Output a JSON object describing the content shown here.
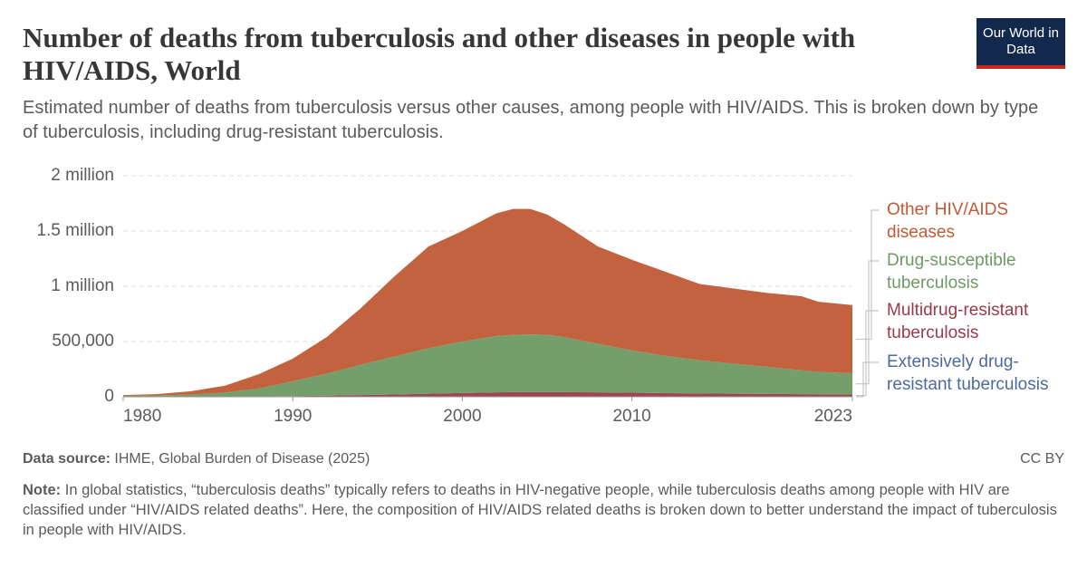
{
  "chart_data": {
    "type": "stacked-area",
    "title": "Number of deaths from tuberculosis and other diseases in people with HIV/AIDS, World",
    "subtitle": "Estimated number of deaths from tuberculosis versus other causes, among people with HIV/AIDS. This is broken down by type of tuberculosis, including drug-resistant tuberculosis.",
    "logo": "Our World in Data",
    "source_label": "Data source:",
    "source": "IHME, Global Burden of Disease (2025)",
    "license": "CC BY",
    "note_label": "Note:",
    "note": "In global statistics, “tuberculosis deaths” typically refers to deaths in HIV-negative people, while tuberculosis deaths among people with HIV are classified under “HIV/AIDS related deaths”. Here, the composition of HIV/AIDS related deaths is broken down to better understand the impact of tuberculosis in people with HIV/AIDS.",
    "x": [
      1980,
      1982,
      1984,
      1986,
      1988,
      1990,
      1992,
      1994,
      1996,
      1998,
      2000,
      2002,
      2003,
      2004,
      2005,
      2006,
      2008,
      2010,
      2012,
      2014,
      2016,
      2018,
      2020,
      2021,
      2023
    ],
    "xlim": [
      1980,
      2023
    ],
    "xticks": [
      1980,
      1990,
      2000,
      2010,
      2023
    ],
    "ylim": [
      0,
      2000000
    ],
    "yticks": [
      0,
      {
        "value": 500000,
        "label": "500,000"
      },
      {
        "value": 1000000,
        "label": "1 million"
      },
      {
        "value": 1500000,
        "label": "1.5 million"
      },
      {
        "value": 2000000,
        "label": "2 million"
      }
    ],
    "grid": true,
    "series": [
      {
        "name": "Extensively drug-resistant tuberculosis",
        "color": "#4c6a9c",
        "values": [
          0,
          0,
          0,
          0,
          0,
          100,
          200,
          500,
          1000,
          1500,
          2000,
          2500,
          2700,
          2800,
          2800,
          2700,
          2500,
          2400,
          2200,
          2000,
          1900,
          1800,
          1600,
          1500,
          1400
        ]
      },
      {
        "name": "Multidrug-resistant tuberculosis",
        "color": "#9a3a4a",
        "values": [
          100,
          200,
          500,
          1000,
          3000,
          6000,
          10000,
          15000,
          20000,
          26000,
          32000,
          37000,
          39000,
          40000,
          40000,
          39000,
          37000,
          34000,
          31000,
          28000,
          26000,
          24000,
          22000,
          21000,
          20000
        ]
      },
      {
        "name": "Drug-susceptible tuberculosis",
        "color": "#6d9a62",
        "values": [
          7900,
          11800,
          19500,
          37000,
          72000,
          133900,
          199800,
          274500,
          344000,
          412500,
          466000,
          510500,
          518300,
          522200,
          517200,
          498300,
          440500,
          383600,
          336800,
          300000,
          272100,
          244200,
          216400,
          202500,
          191600
        ]
      },
      {
        "name": "Other HIV/AIDS diseases",
        "color": "#c05a34",
        "values": [
          7000,
          13000,
          30000,
          62000,
          130000,
          205000,
          330000,
          510000,
          725000,
          920000,
          1000000,
          1110000,
          1140000,
          1135000,
          1090000,
          1020000,
          880000,
          820000,
          760000,
          690000,
          680000,
          670000,
          670000,
          635000,
          617000
        ]
      }
    ]
  }
}
